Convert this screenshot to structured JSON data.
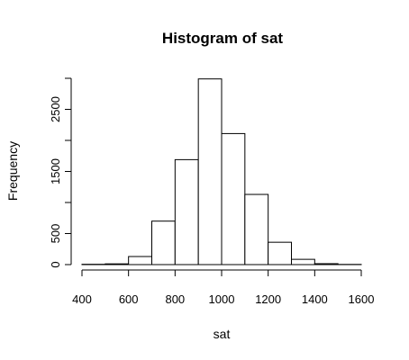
{
  "chart_data": {
    "type": "bar",
    "title": "Histogram of sat",
    "xlabel": "sat",
    "ylabel": "Frequency",
    "bin_edges": [
      400,
      500,
      600,
      700,
      800,
      900,
      1000,
      1100,
      1200,
      1300,
      1400,
      1500,
      1600
    ],
    "values": [
      5,
      12,
      130,
      700,
      1690,
      2990,
      2110,
      1130,
      360,
      85,
      15,
      3
    ],
    "xlim": [
      400,
      1600
    ],
    "ylim": [
      0,
      3000
    ],
    "x_ticks": [
      400,
      600,
      800,
      1000,
      1200,
      1400,
      1600
    ],
    "y_ticks": [
      0,
      500,
      1500,
      2500
    ],
    "y_minor_ticks": [
      1000,
      2000,
      3000
    ],
    "grid": false
  }
}
